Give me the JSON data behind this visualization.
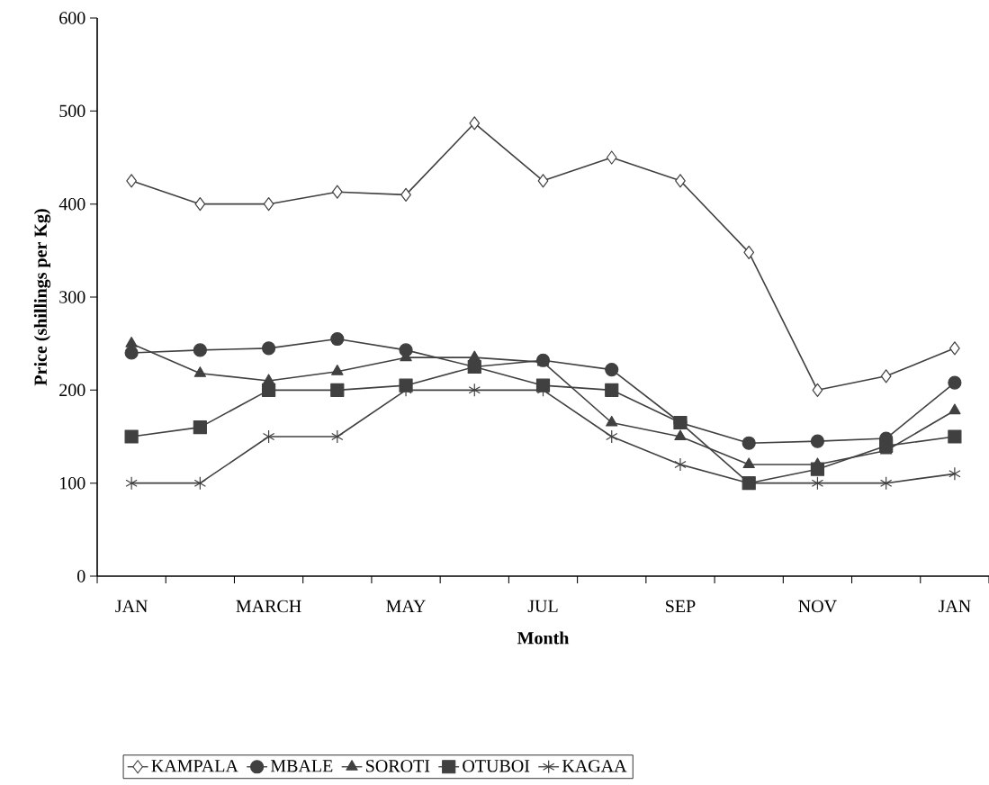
{
  "chart_data": {
    "type": "line",
    "xlabel": "Month",
    "ylabel": "Price (shillings per Kg)",
    "categories": [
      "JAN",
      null,
      "MARCH",
      null,
      "MAY",
      null,
      "JUL",
      null,
      "SEP",
      null,
      "NOV",
      null,
      "JAN"
    ],
    "series": [
      {
        "name": "KAMPALA",
        "color": "#404040",
        "marker": "diamond",
        "values": [
          425,
          400,
          400,
          413,
          410,
          487,
          425,
          450,
          425,
          348,
          200,
          215,
          245
        ]
      },
      {
        "name": "MBALE",
        "color": "#404040",
        "marker": "circle",
        "values": [
          240,
          243,
          245,
          255,
          243,
          225,
          232,
          222,
          165,
          143,
          145,
          148,
          208
        ]
      },
      {
        "name": "SOROTI",
        "color": "#404040",
        "marker": "triangle",
        "values": [
          250,
          218,
          210,
          220,
          235,
          235,
          230,
          165,
          150,
          120,
          120,
          135,
          178
        ]
      },
      {
        "name": "OTUBOI",
        "color": "#404040",
        "marker": "square",
        "values": [
          150,
          160,
          200,
          200,
          205,
          225,
          205,
          200,
          165,
          100,
          115,
          140,
          150
        ]
      },
      {
        "name": "KAGAA",
        "color": "#404040",
        "marker": "cross",
        "values": [
          100,
          100,
          150,
          150,
          200,
          200,
          200,
          150,
          120,
          100,
          100,
          100,
          110
        ]
      }
    ],
    "ylim": [
      0,
      600
    ],
    "yticks": [
      0,
      100,
      200,
      300,
      400,
      500,
      600
    ],
    "grid": false,
    "legend": "bottom",
    "line_style": "solid"
  }
}
